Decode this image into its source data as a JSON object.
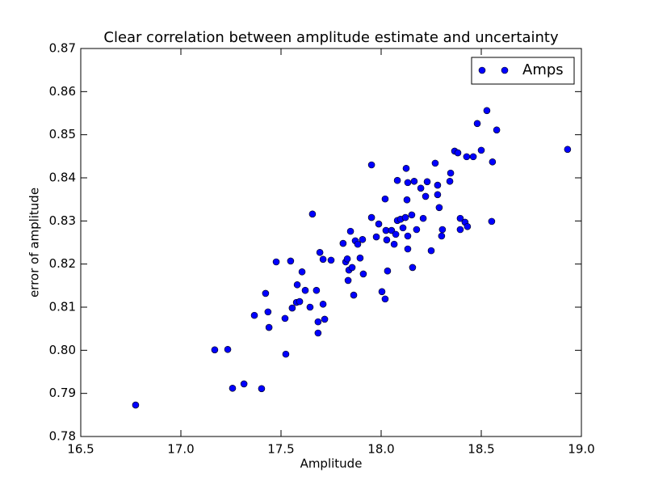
{
  "chart_data": {
    "type": "scatter",
    "title": "Clear correlation between amplitude estimate and uncertainty",
    "x_label": "Amplitude",
    "y_label": "error of amplitude",
    "xlim": [
      16.5,
      19.0
    ],
    "ylim": [
      0.78,
      0.87
    ],
    "xticks": [
      16.5,
      {
        "value": 17.0,
        "label": "17.0"
      },
      17.5,
      {
        "value": 18.0,
        "label": "18.0"
      },
      18.5,
      {
        "value": 19.0,
        "label": "19.0"
      }
    ],
    "yticks": [
      0.78,
      0.79,
      {
        "value": 0.8,
        "label": "0.80"
      },
      0.81,
      0.82,
      0.83,
      0.84,
      0.85,
      0.86,
      0.87
    ],
    "grid": false,
    "legend": "upper right",
    "series": [
      {
        "name": "Amps",
        "color": "#0000ff",
        "x": [
          16.774,
          17.169,
          17.234,
          17.258,
          17.315,
          17.403,
          17.367,
          17.423,
          17.435,
          17.44,
          17.476,
          17.52,
          17.524,
          17.548,
          17.556,
          17.577,
          17.581,
          17.593,
          17.605,
          17.621,
          17.645,
          17.657,
          17.677,
          17.685,
          17.685,
          17.694,
          17.71,
          17.71,
          17.718,
          17.75,
          17.81,
          17.823,
          17.831,
          17.835,
          17.839,
          17.847,
          17.855,
          17.863,
          17.871,
          17.883,
          17.895,
          17.907,
          17.911,
          17.952,
          17.952,
          17.976,
          17.988,
          18.004,
          18.02,
          18.02,
          18.024,
          18.028,
          18.032,
          18.052,
          18.065,
          18.073,
          18.081,
          18.081,
          18.097,
          18.109,
          18.121,
          18.125,
          18.129,
          18.133,
          18.133,
          18.133,
          18.153,
          18.157,
          18.165,
          18.177,
          18.198,
          18.21,
          18.222,
          18.23,
          18.25,
          18.27,
          18.282,
          18.282,
          18.29,
          18.302,
          18.306,
          18.343,
          18.347,
          18.367,
          18.383,
          18.395,
          18.395,
          18.419,
          18.427,
          18.431,
          18.46,
          18.48,
          18.5,
          18.528,
          18.552,
          18.556,
          18.577,
          18.931
        ],
        "values": [
          0.7873,
          0.8001,
          0.8002,
          0.7912,
          0.7922,
          0.7911,
          0.8081,
          0.8132,
          0.8089,
          0.8053,
          0.8205,
          0.8074,
          0.7991,
          0.8207,
          0.8098,
          0.8111,
          0.8152,
          0.8113,
          0.8182,
          0.8139,
          0.81,
          0.8316,
          0.8139,
          0.8066,
          0.804,
          0.8227,
          0.8211,
          0.8107,
          0.8072,
          0.8209,
          0.8248,
          0.8205,
          0.8212,
          0.8162,
          0.8186,
          0.8276,
          0.8192,
          0.8128,
          0.8254,
          0.8246,
          0.8214,
          0.8257,
          0.8177,
          0.843,
          0.8308,
          0.8263,
          0.8293,
          0.8136,
          0.8119,
          0.8351,
          0.8278,
          0.8256,
          0.8184,
          0.8278,
          0.8246,
          0.8269,
          0.8394,
          0.8301,
          0.8304,
          0.8284,
          0.8308,
          0.8422,
          0.8349,
          0.8389,
          0.8265,
          0.8235,
          0.8314,
          0.8192,
          0.8392,
          0.828,
          0.8376,
          0.8306,
          0.8357,
          0.8391,
          0.8231,
          0.8434,
          0.8361,
          0.8383,
          0.8331,
          0.8265,
          0.828,
          0.8392,
          0.8411,
          0.8462,
          0.8458,
          0.8306,
          0.828,
          0.8297,
          0.8449,
          0.8287,
          0.8449,
          0.8526,
          0.8464,
          0.8556,
          0.8299,
          0.8437,
          0.8511,
          0.8466
        ]
      }
    ]
  }
}
